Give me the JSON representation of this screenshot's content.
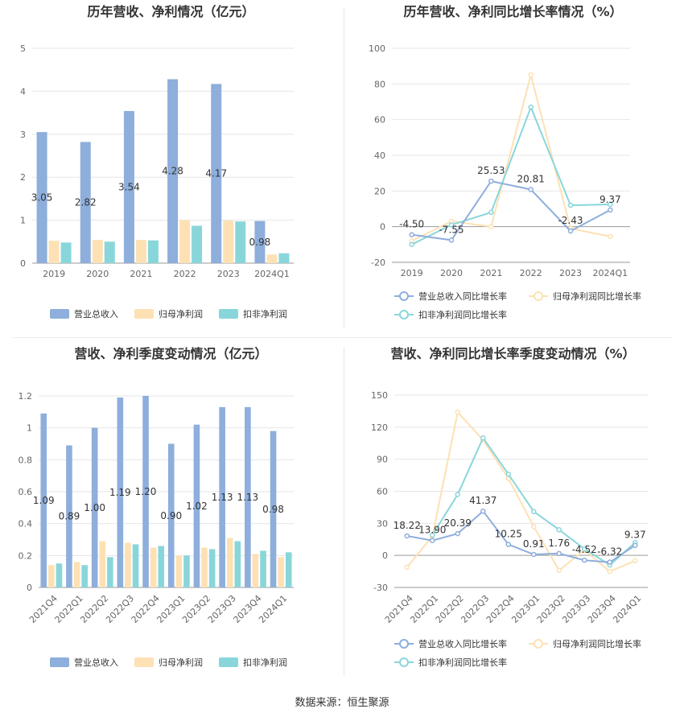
{
  "footer": "数据来源：恒生聚源",
  "chart_data": [
    {
      "type": "bar",
      "title": "历年营收、净利情况（亿元）",
      "categories": [
        "2019",
        "2020",
        "2021",
        "2022",
        "2023",
        "2024Q1"
      ],
      "ylim": [
        0,
        5
      ],
      "yticks": [
        0,
        1,
        2,
        3,
        4,
        5
      ],
      "grid": true,
      "legend_position": "bottom",
      "series": [
        {
          "name": "营业总收入",
          "color": "#8eaedc",
          "values": [
            3.05,
            2.82,
            3.54,
            4.28,
            4.17,
            0.98
          ],
          "labels": [
            "3.05",
            "2.82",
            "3.54",
            "4.28",
            "4.17",
            "0.98"
          ]
        },
        {
          "name": "归母净利润",
          "color": "#fde1b4",
          "values": [
            0.52,
            0.54,
            0.54,
            1.0,
            0.99,
            0.2
          ]
        },
        {
          "name": "扣非净利润",
          "color": "#89d6da",
          "values": [
            0.48,
            0.5,
            0.53,
            0.87,
            0.97,
            0.23
          ]
        }
      ]
    },
    {
      "type": "line",
      "title": "历年营收、净利同比增长率情况（%）",
      "categories": [
        "2019",
        "2020",
        "2021",
        "2022",
        "2023",
        "2024Q1"
      ],
      "ylim": [
        -20,
        100
      ],
      "yticks": [
        -20,
        0,
        20,
        40,
        60,
        80,
        100
      ],
      "grid": true,
      "legend_position": "bottom",
      "series": [
        {
          "name": "营业总收入同比增长率",
          "color": "#8eaedc",
          "values": [
            -4.5,
            -7.55,
            25.53,
            20.81,
            -2.43,
            9.37
          ],
          "labels": [
            "-4.50",
            "-7.55",
            "25.53",
            "20.81",
            "-2.43",
            "9.37"
          ]
        },
        {
          "name": "归母净利润同比增长率",
          "color": "#fde1b4",
          "values": [
            -8,
            3,
            0,
            85,
            -1,
            -5.5
          ]
        },
        {
          "name": "扣非净利润同比增长率",
          "color": "#89d6da",
          "values": [
            -10,
            1,
            8,
            67,
            12,
            12.5
          ]
        }
      ]
    },
    {
      "type": "bar",
      "title": "营收、净利季度变动情况（亿元）",
      "categories": [
        "2021Q4",
        "2022Q1",
        "2022Q2",
        "2022Q3",
        "2022Q4",
        "2023Q1",
        "2023Q2",
        "2023Q3",
        "2023Q4",
        "2024Q1"
      ],
      "ylim": [
        0,
        1.2
      ],
      "yticks": [
        0,
        0.2,
        0.4,
        0.6,
        0.8,
        1,
        1.2
      ],
      "grid": true,
      "legend_position": "bottom",
      "series": [
        {
          "name": "营业总收入",
          "color": "#8eaedc",
          "values": [
            1.09,
            0.89,
            1.0,
            1.19,
            1.2,
            0.9,
            1.02,
            1.13,
            1.13,
            0.98
          ],
          "labels": [
            "1.09",
            "0.89",
            "1.00",
            "1.19",
            "1.20",
            "0.90",
            "1.02",
            "1.13",
            "1.13",
            "0.98"
          ]
        },
        {
          "name": "归母净利润",
          "color": "#fde1b4",
          "values": [
            0.14,
            0.16,
            0.29,
            0.28,
            0.25,
            0.2,
            0.25,
            0.31,
            0.21,
            0.19
          ]
        },
        {
          "name": "扣非净利润",
          "color": "#89d6da",
          "values": [
            0.15,
            0.14,
            0.19,
            0.27,
            0.26,
            0.2,
            0.24,
            0.29,
            0.23,
            0.22
          ]
        }
      ]
    },
    {
      "type": "line",
      "title": "营收、净利同比增长率季度变动情况（%）",
      "categories": [
        "2021Q4",
        "2022Q1",
        "2022Q2",
        "2022Q3",
        "2022Q4",
        "2023Q1",
        "2023Q2",
        "2023Q3",
        "2023Q4",
        "2024Q1"
      ],
      "ylim": [
        -30,
        150
      ],
      "yticks": [
        -30,
        0,
        30,
        60,
        90,
        120,
        150
      ],
      "grid": true,
      "legend_position": "bottom",
      "series": [
        {
          "name": "营业总收入同比增长率",
          "color": "#8eaedc",
          "values": [
            18.22,
            13.9,
            20.39,
            41.37,
            10.25,
            0.91,
            1.76,
            -4.52,
            -6.32,
            9.37
          ],
          "labels": [
            "18.22",
            "13.90",
            "20.39",
            "41.37",
            "10.25",
            "0.91",
            "1.76",
            "-4.52",
            "-6.32",
            "9.37"
          ]
        },
        {
          "name": "归母净利润同比增长率",
          "color": "#fde1b4",
          "values": [
            -11,
            18,
            134,
            108,
            72,
            27,
            -14,
            5,
            -15,
            -5
          ]
        },
        {
          "name": "扣非净利润同比增长率",
          "color": "#89d6da",
          "values": [
            null,
            19,
            57,
            110,
            76,
            41,
            24,
            6,
            -9,
            12
          ]
        }
      ]
    }
  ]
}
